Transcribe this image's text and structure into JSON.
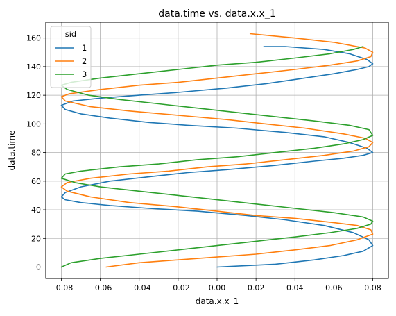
{
  "chart_data": {
    "type": "line",
    "title": "data.time vs. data.x.x_1",
    "xlabel": "data.x.x_1",
    "ylabel": "data.time",
    "xlim": [
      -0.088,
      0.088
    ],
    "ylim": [
      -8,
      171
    ],
    "xticks": [
      -0.08,
      -0.06,
      -0.04,
      -0.02,
      0.0,
      0.02,
      0.04,
      0.06,
      0.08
    ],
    "xtick_labels": [
      "−0.08",
      "−0.06",
      "−0.04",
      "−0.02",
      "0.00",
      "0.02",
      "0.04",
      "0.06",
      "0.08"
    ],
    "yticks": [
      0,
      20,
      40,
      60,
      80,
      100,
      120,
      140,
      160
    ],
    "ytick_labels": [
      "0",
      "20",
      "40",
      "60",
      "80",
      "100",
      "120",
      "140",
      "160"
    ],
    "grid": true,
    "legend": {
      "title": "sid",
      "placement": "top-left"
    },
    "series": [
      {
        "name": "1",
        "color": "#1f77b4",
        "points": [
          [
            0.0,
            0
          ],
          [
            0.03,
            2
          ],
          [
            0.05,
            5
          ],
          [
            0.065,
            8
          ],
          [
            0.075,
            11
          ],
          [
            0.08,
            15
          ],
          [
            0.078,
            19
          ],
          [
            0.07,
            24
          ],
          [
            0.055,
            29
          ],
          [
            0.035,
            33
          ],
          [
            0.015,
            36
          ],
          [
            -0.01,
            39
          ],
          [
            -0.035,
            41
          ],
          [
            -0.055,
            43
          ],
          [
            -0.07,
            45
          ],
          [
            -0.078,
            47
          ],
          [
            -0.08,
            49
          ],
          [
            -0.078,
            52
          ],
          [
            -0.07,
            56
          ],
          [
            -0.055,
            60
          ],
          [
            -0.035,
            63
          ],
          [
            -0.015,
            66
          ],
          [
            0.005,
            68
          ],
          [
            0.03,
            71
          ],
          [
            0.05,
            74
          ],
          [
            0.065,
            76
          ],
          [
            0.075,
            78
          ],
          [
            0.08,
            80
          ],
          [
            0.077,
            83
          ],
          [
            0.068,
            87
          ],
          [
            0.055,
            91
          ],
          [
            0.035,
            94
          ],
          [
            0.01,
            97
          ],
          [
            -0.015,
            99
          ],
          [
            -0.035,
            101
          ],
          [
            -0.055,
            104
          ],
          [
            -0.07,
            107
          ],
          [
            -0.078,
            110
          ],
          [
            -0.08,
            113
          ],
          [
            -0.074,
            116
          ],
          [
            -0.06,
            118
          ],
          [
            -0.04,
            120
          ],
          [
            -0.02,
            122
          ],
          [
            0.005,
            125
          ],
          [
            0.025,
            128
          ],
          [
            0.045,
            132
          ],
          [
            0.06,
            135
          ],
          [
            0.072,
            138
          ],
          [
            0.078,
            140
          ],
          [
            0.08,
            142
          ],
          [
            0.077,
            145
          ],
          [
            0.068,
            149
          ],
          [
            0.055,
            152
          ],
          [
            0.035,
            154
          ],
          [
            0.024,
            154
          ]
        ]
      },
      {
        "name": "2",
        "color": "#ff7f0e",
        "points": [
          [
            -0.057,
            0
          ],
          [
            -0.04,
            3
          ],
          [
            -0.02,
            5
          ],
          [
            0.0,
            7
          ],
          [
            0.02,
            9
          ],
          [
            0.04,
            12
          ],
          [
            0.058,
            15
          ],
          [
            0.072,
            19
          ],
          [
            0.08,
            23
          ],
          [
            0.079,
            26
          ],
          [
            0.072,
            29
          ],
          [
            0.06,
            31
          ],
          [
            0.04,
            34
          ],
          [
            0.02,
            36
          ],
          [
            0.0,
            39
          ],
          [
            -0.02,
            42
          ],
          [
            -0.045,
            45
          ],
          [
            -0.065,
            49
          ],
          [
            -0.077,
            53
          ],
          [
            -0.08,
            56
          ],
          [
            -0.077,
            59
          ],
          [
            -0.065,
            62
          ],
          [
            -0.045,
            65
          ],
          [
            -0.025,
            67
          ],
          [
            -0.005,
            70
          ],
          [
            0.015,
            72
          ],
          [
            0.035,
            75
          ],
          [
            0.055,
            78
          ],
          [
            0.07,
            81
          ],
          [
            0.078,
            84
          ],
          [
            0.08,
            87
          ],
          [
            0.076,
            90
          ],
          [
            0.065,
            93
          ],
          [
            0.045,
            97
          ],
          [
            0.025,
            100
          ],
          [
            0.005,
            103
          ],
          [
            -0.02,
            106
          ],
          [
            -0.045,
            109
          ],
          [
            -0.065,
            112
          ],
          [
            -0.078,
            116
          ],
          [
            -0.08,
            119
          ],
          [
            -0.076,
            121
          ],
          [
            -0.06,
            124
          ],
          [
            -0.04,
            127
          ],
          [
            -0.02,
            129
          ],
          [
            0.0,
            132
          ],
          [
            0.02,
            135
          ],
          [
            0.04,
            138
          ],
          [
            0.058,
            141
          ],
          [
            0.072,
            144
          ],
          [
            0.079,
            147
          ],
          [
            0.08,
            150
          ],
          [
            0.076,
            153
          ],
          [
            0.06,
            157
          ],
          [
            0.04,
            160
          ],
          [
            0.017,
            163
          ]
        ]
      },
      {
        "name": "3",
        "color": "#2ca02c",
        "points": [
          [
            -0.08,
            0
          ],
          [
            -0.075,
            3
          ],
          [
            -0.06,
            6
          ],
          [
            -0.04,
            9
          ],
          [
            -0.02,
            12
          ],
          [
            0.0,
            15
          ],
          [
            0.02,
            18
          ],
          [
            0.04,
            21
          ],
          [
            0.058,
            24
          ],
          [
            0.072,
            27
          ],
          [
            0.079,
            30
          ],
          [
            0.08,
            32
          ],
          [
            0.075,
            35
          ],
          [
            0.06,
            38
          ],
          [
            0.04,
            41
          ],
          [
            0.02,
            44
          ],
          [
            0.0,
            47
          ],
          [
            -0.02,
            50
          ],
          [
            -0.04,
            53
          ],
          [
            -0.06,
            56
          ],
          [
            -0.073,
            59
          ],
          [
            -0.08,
            62
          ],
          [
            -0.078,
            65
          ],
          [
            -0.07,
            67
          ],
          [
            -0.05,
            70
          ],
          [
            -0.03,
            72
          ],
          [
            -0.01,
            75
          ],
          [
            0.01,
            77
          ],
          [
            0.03,
            80
          ],
          [
            0.05,
            83
          ],
          [
            0.065,
            86
          ],
          [
            0.075,
            89
          ],
          [
            0.08,
            92
          ],
          [
            0.078,
            96
          ],
          [
            0.068,
            99
          ],
          [
            0.05,
            102
          ],
          [
            0.03,
            105
          ],
          [
            0.01,
            108
          ],
          [
            -0.01,
            111
          ],
          [
            -0.03,
            114
          ],
          [
            -0.05,
            117
          ],
          [
            -0.066,
            120
          ],
          [
            -0.077,
            124
          ],
          [
            -0.08,
            127
          ],
          [
            -0.075,
            129
          ],
          [
            -0.06,
            132
          ],
          [
            -0.04,
            135
          ],
          [
            -0.02,
            138
          ],
          [
            0.0,
            141
          ],
          [
            0.02,
            143
          ],
          [
            0.04,
            146
          ],
          [
            0.058,
            149
          ],
          [
            0.07,
            152
          ],
          [
            0.075,
            154
          ]
        ]
      }
    ]
  }
}
